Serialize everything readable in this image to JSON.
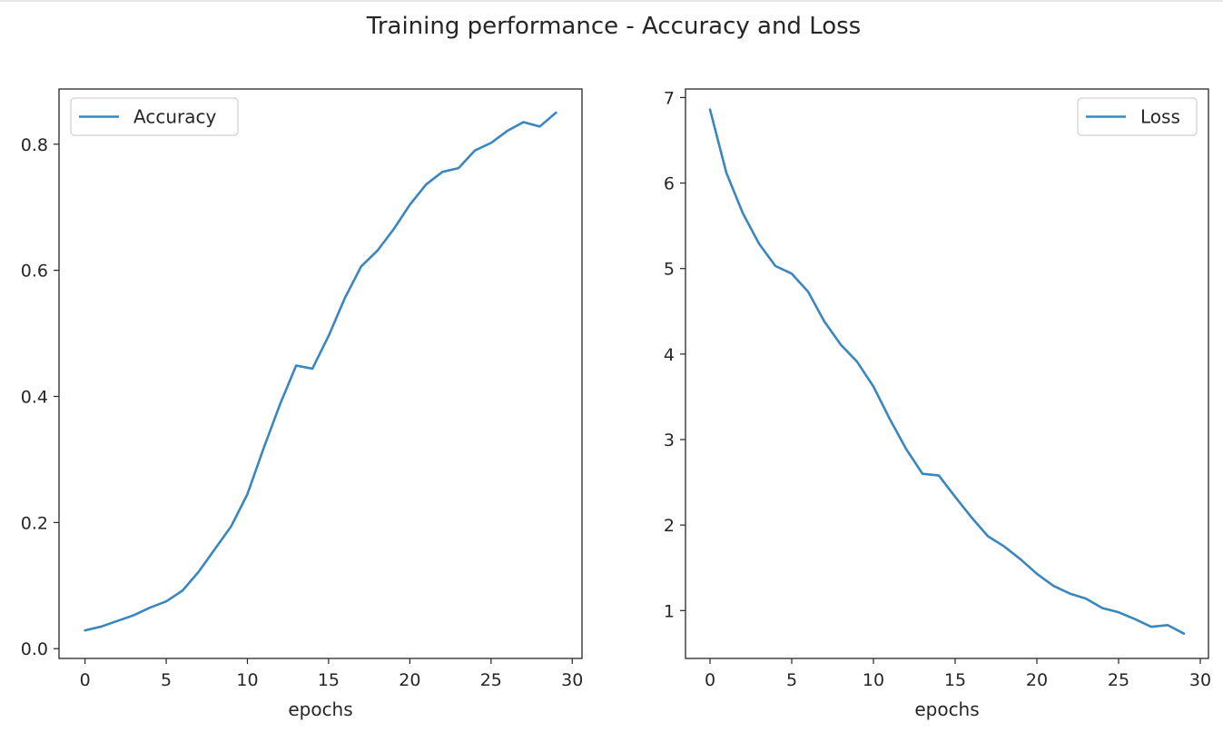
{
  "figure": {
    "title": "Training performance - Accuracy and Loss"
  },
  "colors": {
    "line": "#3a87c0",
    "axes": "#262626",
    "legend_border": "#d0d0d0",
    "background": "#ffffff"
  },
  "chart_data": [
    {
      "type": "line",
      "xlabel": "epochs",
      "ylabel": "",
      "xlim": [
        -1.6,
        30.6
      ],
      "ylim": [
        -0.0155,
        0.8875
      ],
      "x_ticks": [
        0,
        5,
        10,
        15,
        20,
        25,
        30
      ],
      "y_ticks": [
        0.0,
        0.2,
        0.4,
        0.6,
        0.8
      ],
      "y_tick_decimals": 1,
      "legend_position": "top-left",
      "grid": false,
      "series": [
        {
          "name": "Accuracy",
          "x": [
            0,
            1,
            2,
            3,
            4,
            5,
            6,
            7,
            8,
            9,
            10,
            11,
            12,
            13,
            14,
            15,
            16,
            17,
            18,
            19,
            20,
            21,
            22,
            23,
            24,
            25,
            26,
            27,
            28,
            29
          ],
          "y": [
            0.029,
            0.035,
            0.044,
            0.053,
            0.065,
            0.075,
            0.092,
            0.122,
            0.158,
            0.194,
            0.245,
            0.318,
            0.387,
            0.449,
            0.444,
            0.496,
            0.556,
            0.606,
            0.631,
            0.665,
            0.704,
            0.736,
            0.756,
            0.762,
            0.79,
            0.802,
            0.821,
            0.835,
            0.828,
            0.85
          ]
        }
      ]
    },
    {
      "type": "line",
      "xlabel": "epochs",
      "ylabel": "",
      "xlim": [
        -1.5,
        30.5
      ],
      "ylim": [
        0.44,
        7.1
      ],
      "x_ticks": [
        0,
        5,
        10,
        15,
        20,
        25,
        30
      ],
      "y_ticks": [
        1,
        2,
        3,
        4,
        5,
        6,
        7
      ],
      "y_tick_decimals": 0,
      "legend_position": "top-right",
      "grid": false,
      "series": [
        {
          "name": "Loss",
          "x": [
            0,
            1,
            2,
            3,
            4,
            5,
            6,
            7,
            8,
            9,
            10,
            11,
            12,
            13,
            14,
            15,
            16,
            17,
            18,
            19,
            20,
            21,
            22,
            23,
            24,
            25,
            26,
            27,
            28,
            29
          ],
          "y": [
            6.86,
            6.12,
            5.65,
            5.29,
            5.03,
            4.94,
            4.73,
            4.38,
            4.11,
            3.91,
            3.62,
            3.24,
            2.89,
            2.6,
            2.58,
            2.33,
            2.09,
            1.87,
            1.75,
            1.6,
            1.43,
            1.29,
            1.2,
            1.14,
            1.03,
            0.98,
            0.9,
            0.81,
            0.83,
            0.73
          ]
        }
      ]
    }
  ]
}
